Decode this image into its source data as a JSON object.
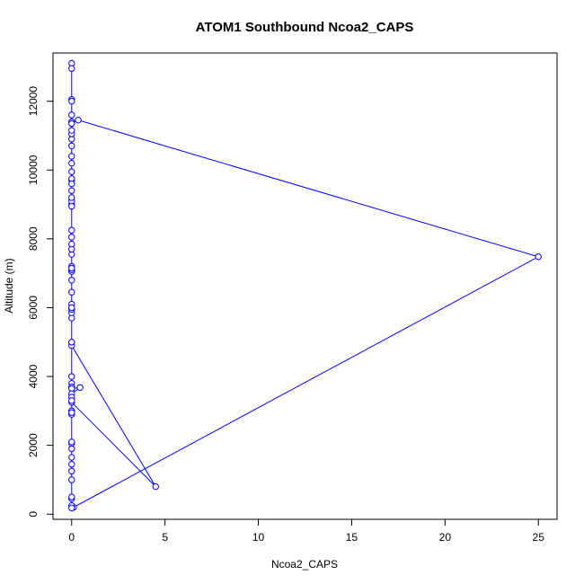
{
  "chart_data": {
    "type": "line",
    "title": "ATOM1 Southbound Ncoa2_CAPS",
    "xlabel": "Ncoa2_CAPS",
    "ylabel": "Altitude (m)",
    "xlim": [
      -1,
      26
    ],
    "ylim": [
      -150,
      13400
    ],
    "xticks": [
      0,
      5,
      10,
      15,
      20,
      25
    ],
    "yticks": [
      0,
      2000,
      4000,
      6000,
      8000,
      10000,
      12000
    ],
    "grid": false,
    "legend": "none",
    "series": [
      {
        "color": "#0000ff",
        "marker": "open-circle",
        "points": [
          {
            "x": 0.0,
            "y": 13100
          },
          {
            "x": 0.0,
            "y": 12950
          },
          {
            "x": 0.0,
            "y": 12050
          },
          {
            "x": 0.0,
            "y": 12000
          },
          {
            "x": 0.0,
            "y": 11600
          },
          {
            "x": 0.0,
            "y": 11400
          },
          {
            "x": 0.35,
            "y": 11450
          },
          {
            "x": 25.0,
            "y": 7480
          },
          {
            "x": 0.1,
            "y": 200
          },
          {
            "x": 0.0,
            "y": 250
          },
          {
            "x": 0.0,
            "y": 180
          },
          {
            "x": 0.0,
            "y": 450
          },
          {
            "x": 0.0,
            "y": 1250
          },
          {
            "x": 0.0,
            "y": 1450
          },
          {
            "x": 0.0,
            "y": 1650
          },
          {
            "x": 0.0,
            "y": 2050
          },
          {
            "x": 0.0,
            "y": 2100
          },
          {
            "x": 0.0,
            "y": 2900
          },
          {
            "x": 0.0,
            "y": 3000
          },
          {
            "x": 0.0,
            "y": 3250
          },
          {
            "x": 4.5,
            "y": 800
          },
          {
            "x": 0.0,
            "y": 4900
          },
          {
            "x": 0.0,
            "y": 5000
          },
          {
            "x": 0.0,
            "y": 5700
          },
          {
            "x": 0.0,
            "y": 5850
          },
          {
            "x": 0.0,
            "y": 5950
          },
          {
            "x": 0.0,
            "y": 6100
          },
          {
            "x": 0.0,
            "y": 6450
          },
          {
            "x": 0.0,
            "y": 6800
          },
          {
            "x": 0.0,
            "y": 7050
          },
          {
            "x": 0.0,
            "y": 7100
          },
          {
            "x": 0.0,
            "y": 7200
          },
          {
            "x": 0.0,
            "y": 7550
          },
          {
            "x": 0.0,
            "y": 7700
          },
          {
            "x": 0.0,
            "y": 7850
          },
          {
            "x": 0.0,
            "y": 8050
          },
          {
            "x": 0.0,
            "y": 8250
          },
          {
            "x": 0.0,
            "y": 9000
          },
          {
            "x": 0.0,
            "y": 9100
          },
          {
            "x": 0.0,
            "y": 9200
          },
          {
            "x": 0.0,
            "y": 9400
          },
          {
            "x": 0.0,
            "y": 9700
          },
          {
            "x": 0.0,
            "y": 9750
          },
          {
            "x": 0.0,
            "y": 9950
          },
          {
            "x": 0.0,
            "y": 10200
          },
          {
            "x": 0.0,
            "y": 10400
          },
          {
            "x": 0.0,
            "y": 10700
          },
          {
            "x": 0.0,
            "y": 10900
          },
          {
            "x": 0.0,
            "y": 11050
          },
          {
            "x": 0.0,
            "y": 11150
          },
          {
            "x": 0.0,
            "y": 11400
          },
          {
            "x": 0.0,
            "y": 11350
          },
          {
            "x": 0.0,
            "y": 9600
          },
          {
            "x": 0.0,
            "y": 8950
          },
          {
            "x": 0.0,
            "y": 7150
          },
          {
            "x": 0.0,
            "y": 6000
          },
          {
            "x": 0.0,
            "y": 4000
          },
          {
            "x": 0.0,
            "y": 3800
          },
          {
            "x": 0.0,
            "y": 3700
          },
          {
            "x": 0.0,
            "y": 3650
          },
          {
            "x": 0.45,
            "y": 3680
          },
          {
            "x": 0.0,
            "y": 3500
          },
          {
            "x": 0.0,
            "y": 3400
          },
          {
            "x": 0.0,
            "y": 3300
          },
          {
            "x": 0.0,
            "y": 2950
          },
          {
            "x": 0.0,
            "y": 1900
          },
          {
            "x": 0.0,
            "y": 1000
          },
          {
            "x": 0.0,
            "y": 500
          }
        ]
      }
    ]
  }
}
